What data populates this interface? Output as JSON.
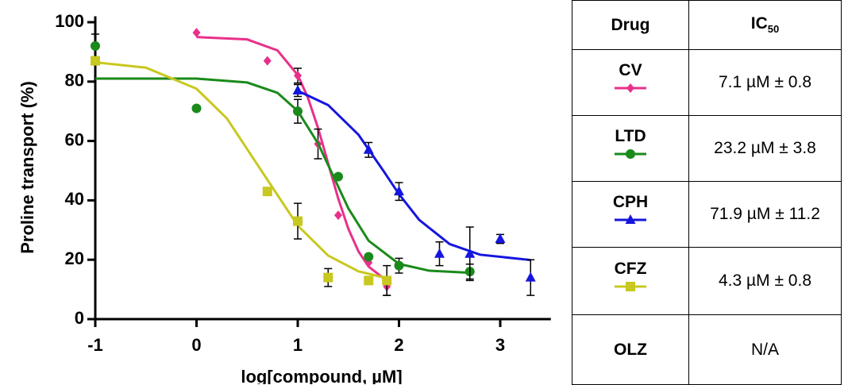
{
  "chart_data": {
    "type": "dose-response",
    "x_label": "log[compound, µM]",
    "y_label": "Proline transport (%)",
    "xlim": [
      -1,
      3.5
    ],
    "ylim": [
      0,
      102
    ],
    "xticks": [
      -1,
      0,
      1,
      2,
      3
    ],
    "yticks": [
      0,
      20,
      40,
      60,
      80,
      100
    ],
    "series": [
      {
        "name": "CV",
        "color": "#e8308a",
        "marker": "diamond",
        "x": [
          0,
          0.7,
          1,
          1.2,
          1.4,
          1.7,
          1.88
        ],
        "values": [
          96.5,
          87,
          82,
          59,
          35,
          19,
          11
        ],
        "errors": [
          null,
          null,
          2.5,
          5,
          null,
          null,
          3
        ],
        "fit_x": [
          0,
          0.5,
          0.8,
          1,
          1.1,
          1.2,
          1.3,
          1.4,
          1.5,
          1.6,
          1.7,
          1.88
        ],
        "fit_values": [
          95,
          94.2,
          90.5,
          82.2,
          74.6,
          64.4,
          52.5,
          40.6,
          30.4,
          22.8,
          17.7,
          12.9
        ]
      },
      {
        "name": "LTD",
        "color": "#1a8a1a",
        "marker": "circle",
        "x": [
          -1,
          0,
          1,
          1.4,
          1.7,
          2,
          2.7
        ],
        "values": [
          92,
          71,
          70,
          48,
          21,
          18,
          16
        ],
        "errors": [
          4,
          null,
          4,
          null,
          null,
          2.5,
          2.5
        ],
        "fit_x": [
          -1,
          0,
          0.5,
          0.8,
          1,
          1.2,
          1.35,
          1.5,
          1.7,
          2,
          2.3,
          2.7
        ],
        "fit_values": [
          81,
          81,
          79.7,
          76.2,
          70.1,
          59.2,
          48.25,
          37.3,
          26.4,
          18.6,
          16.3,
          15.6
        ]
      },
      {
        "name": "CPH",
        "color": "#1515e0",
        "marker": "triangle",
        "x": [
          1,
          1.7,
          2,
          2.4,
          2.7,
          3,
          3.3
        ],
        "values": [
          77,
          57,
          43,
          22,
          22,
          27,
          14
        ],
        "errors": [
          2,
          2.5,
          3,
          4,
          9,
          1.5,
          6
        ],
        "fit_x": [
          1,
          1.3,
          1.6,
          1.85,
          2,
          2.2,
          2.5,
          2.8,
          3.3
        ],
        "fit_values": [
          76.9,
          72.1,
          62.1,
          49.75,
          42.1,
          33.4,
          25.3,
          21.7,
          19.9
        ]
      },
      {
        "name": "CFZ",
        "color": "#c8c820",
        "marker": "square",
        "x": [
          -1,
          0.7,
          1,
          1.3,
          1.7,
          1.88
        ],
        "values": [
          87,
          43,
          33,
          14,
          13,
          13
        ],
        "errors": [
          null,
          null,
          6,
          3,
          null,
          5
        ],
        "fit_x": [
          -1,
          -0.5,
          0,
          0.3,
          0.65,
          1,
          1.3,
          1.6,
          1.88
        ],
        "fit_values": [
          86.5,
          84.7,
          77.6,
          67.6,
          49.5,
          31.5,
          21.4,
          16.1,
          13.8
        ]
      }
    ]
  },
  "table": {
    "drug_header": "Drug",
    "ic50_header": "IC",
    "ic50_header_sub": "50",
    "ic50": [
      "7.1 µM ± 0.8",
      "23.2 µM ± 3.8",
      "71.9 µM ± 11.2",
      "4.3 µM ± 0.8"
    ],
    "extra_drug": "OLZ",
    "extra_ic50": "N/A"
  }
}
